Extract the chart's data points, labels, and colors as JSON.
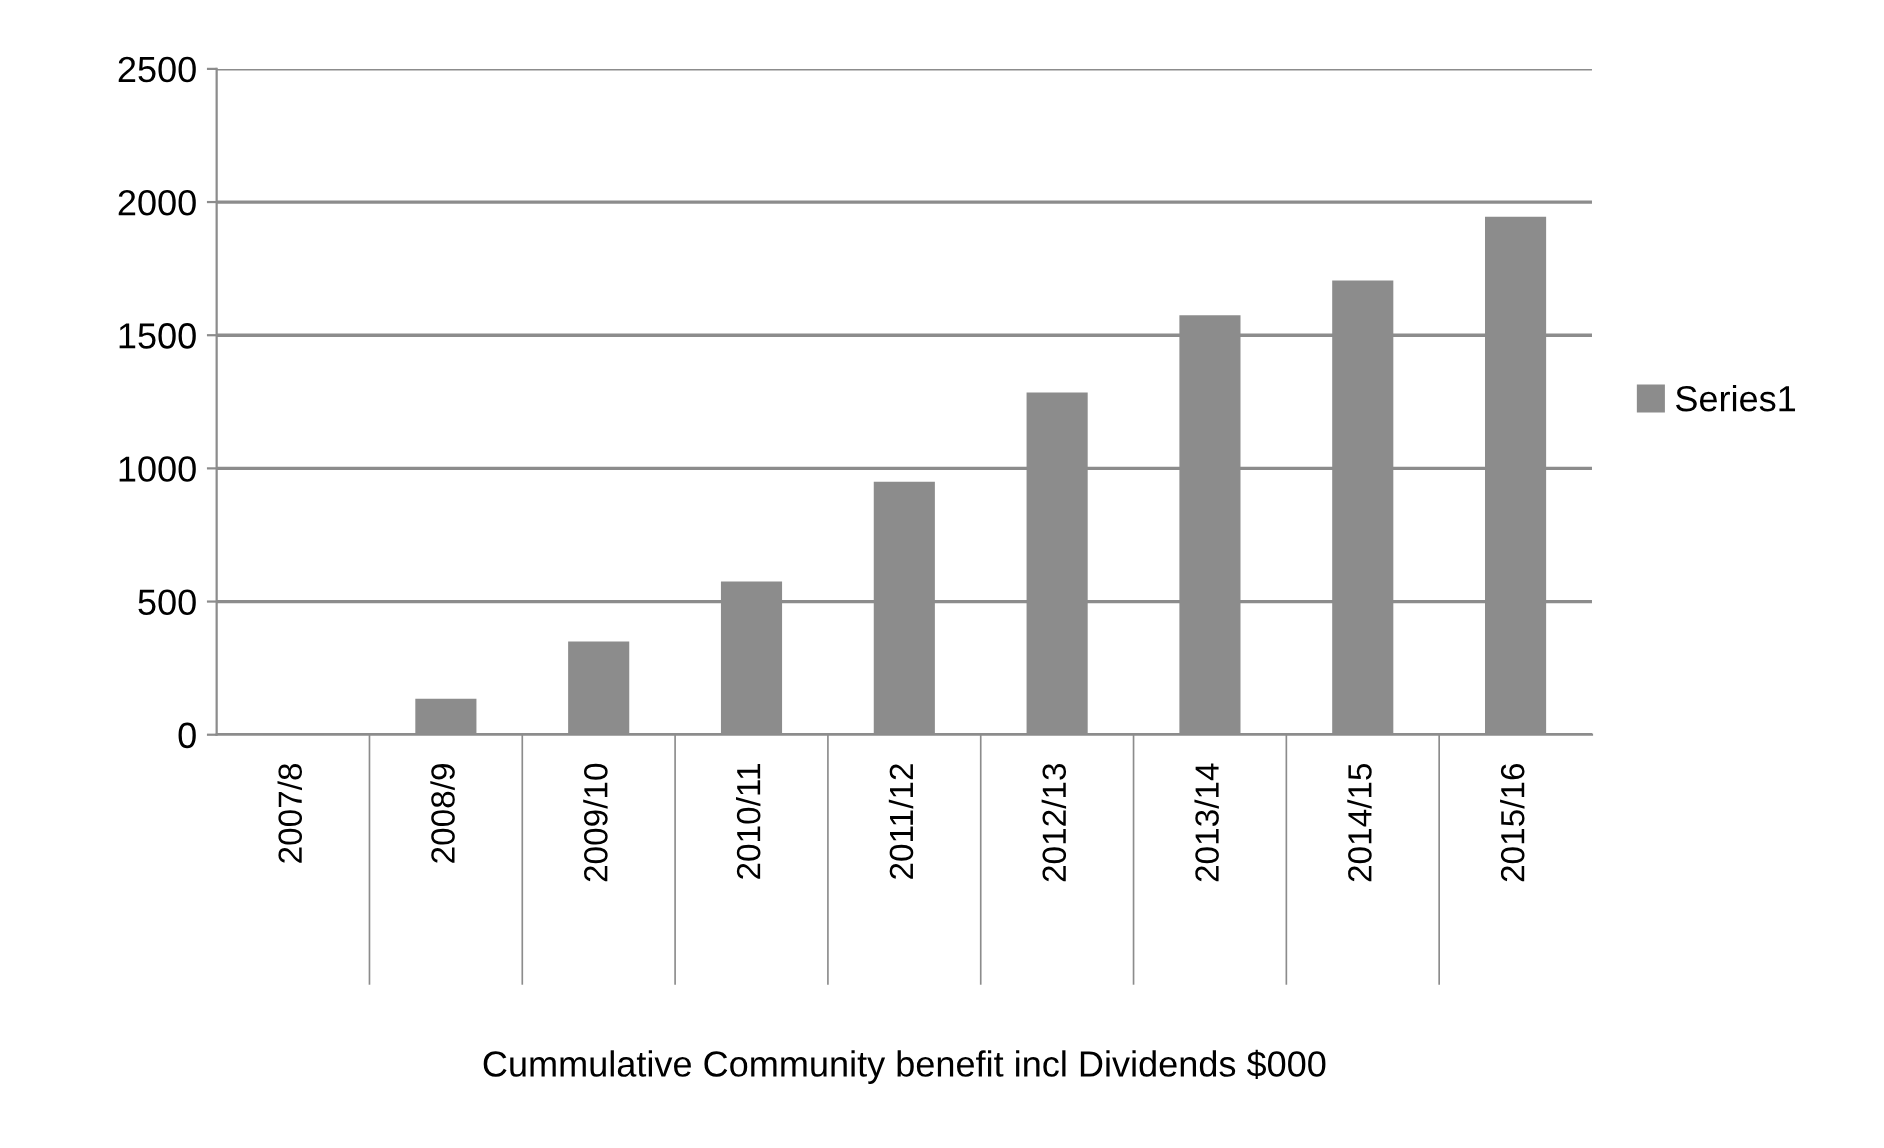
{
  "chart_data": {
    "type": "bar",
    "xlabel": "Cummulative Community benefit incl Dividends $000",
    "categories": [
      "2007/8",
      "2008/9",
      "2009/10",
      "2010/11",
      "2011/12",
      "2012/13",
      "2013/14",
      "2014/15",
      "2015/16"
    ],
    "series": [
      {
        "name": "Series1",
        "color": "#8c8c8c",
        "values": [
          5,
          135,
          350,
          575,
          950,
          1285,
          1575,
          1705,
          1945
        ]
      }
    ],
    "ylim": [
      0,
      2500
    ],
    "yticks": [
      0,
      500,
      1000,
      1500,
      2000,
      2500
    ],
    "grid": "y",
    "legend": "right"
  }
}
